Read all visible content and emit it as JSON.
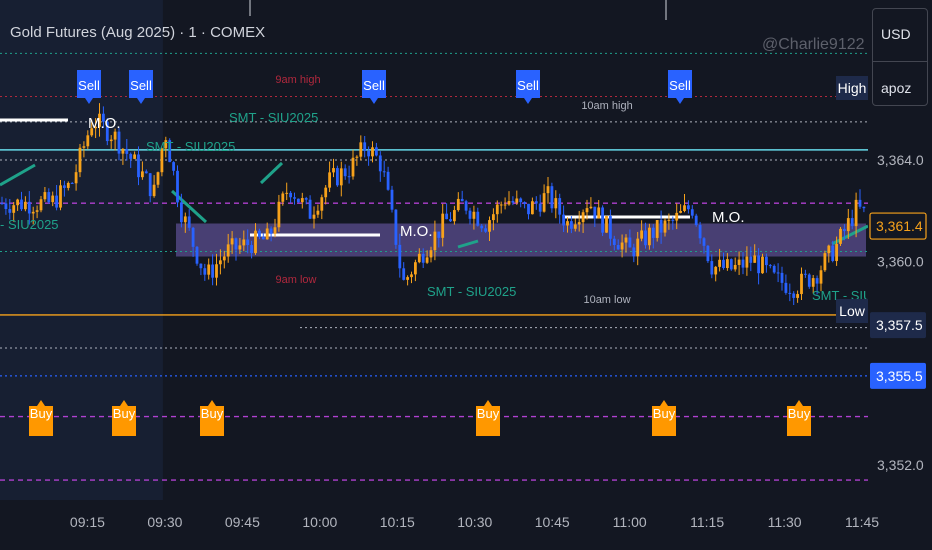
{
  "header": {
    "title": "Gold Futures (Aug 2025) · 1 · COMEX",
    "watermark": "@Charlie9122",
    "currency": "USD",
    "unit": "apoz"
  },
  "colors": {
    "background": "#131722",
    "session_shade": "#1b2640",
    "candle_up": "#f7a21b",
    "candle_down": "#2962ff",
    "sell_label": "#2962ff",
    "buy_label": "#ff9800",
    "axis_text": "#b2b5be",
    "purple_dashed": "#b040d0",
    "cyan_line": "#66d9e8",
    "dotted_white": "#aeb2bd",
    "smt_line": "#1fa28a",
    "mo_line": "#ffffff",
    "orange_line": "#f7a21b",
    "blue_dotted": "#2962ff",
    "red_dotted": "#b0283d",
    "band_fill": "#5b4e8f",
    "green_dotted": "#1f9e8a"
  },
  "chart_data": {
    "type": "candlestick",
    "symbol": "Gold Futures (Aug 2025)",
    "interval": "1",
    "exchange": "COMEX",
    "x_tick_labels": [
      "09:15",
      "09:30",
      "09:45",
      "10:00",
      "10:15",
      "10:30",
      "10:45",
      "11:00",
      "11:15",
      "11:30",
      "11:45"
    ],
    "y_tick_labels": [
      "3,364.0",
      "3,360.0",
      "3,352.0"
    ],
    "y_range": [
      3350.6,
      3368.9
    ],
    "time_range": [
      "09:08",
      "11:50"
    ],
    "price_badges": [
      {
        "label": "3,361.4",
        "value": 3361.4,
        "style": "last-price"
      },
      {
        "label": "3,357.5",
        "value": 3357.5,
        "style": "dark"
      },
      {
        "label": "3,355.5",
        "value": 3355.5,
        "style": "blue"
      }
    ],
    "levels": [
      {
        "name": "9am high",
        "value": 3366.4,
        "style": "red-dotted"
      },
      {
        "name": "10am high",
        "value": 3364.9,
        "style": "white-dotted"
      },
      {
        "name": "9am low",
        "value": 3358.2,
        "style": "red-dotted"
      },
      {
        "name": "10am low",
        "value": 3357.7,
        "style": "white-dotted"
      },
      {
        "name": "High",
        "value": 3366.5
      },
      {
        "name": "Low",
        "value": 3357.5
      },
      {
        "name": "M.O.",
        "value": 3360.9
      },
      {
        "name": "M.O.",
        "value": 3361.5
      },
      {
        "name": "M.O.",
        "value": 3365.2
      }
    ],
    "smt_labels": [
      "SMT - SIU2025",
      "SMT - SIU2025",
      "- SIU2025",
      "SMT - SIU2025",
      "SMT - SIU"
    ],
    "signals": {
      "sell_times": [
        "09:23",
        "09:31",
        "10:12",
        "10:43",
        "11:14"
      ],
      "buy_times": [
        "09:11",
        "09:27",
        "09:41",
        "10:36",
        "11:10",
        "11:37"
      ]
    },
    "series": [
      {
        "time": "09:08",
        "close": 3362.3
      },
      {
        "time": "09:12",
        "close": 3363.1
      },
      {
        "time": "09:16",
        "close": 3365.6
      },
      {
        "time": "09:20",
        "close": 3365.0
      },
      {
        "time": "09:24",
        "close": 3363.9
      },
      {
        "time": "09:28",
        "close": 3362.7
      },
      {
        "time": "09:30",
        "close": 3365.2
      },
      {
        "time": "09:33",
        "close": 3362.1
      },
      {
        "time": "09:36",
        "close": 3360.4
      },
      {
        "time": "09:38",
        "close": 3359.4
      },
      {
        "time": "09:42",
        "close": 3360.4
      },
      {
        "time": "09:46",
        "close": 3360.7
      },
      {
        "time": "09:50",
        "close": 3360.9
      },
      {
        "time": "09:54",
        "close": 3363.0
      },
      {
        "time": "09:58",
        "close": 3361.9
      },
      {
        "time": "10:02",
        "close": 3363.2
      },
      {
        "time": "10:06",
        "close": 3363.7
      },
      {
        "time": "10:09",
        "close": 3364.6
      },
      {
        "time": "10:12",
        "close": 3363.8
      },
      {
        "time": "10:15",
        "close": 3360.6
      },
      {
        "time": "10:16",
        "close": 3359.1
      },
      {
        "time": "10:20",
        "close": 3360.4
      },
      {
        "time": "10:24",
        "close": 3361.5
      },
      {
        "time": "10:28",
        "close": 3362.3
      },
      {
        "time": "10:32",
        "close": 3361.5
      },
      {
        "time": "10:36",
        "close": 3362.5
      },
      {
        "time": "10:40",
        "close": 3362.0
      },
      {
        "time": "10:44",
        "close": 3362.6
      },
      {
        "time": "10:48",
        "close": 3361.5
      },
      {
        "time": "10:52",
        "close": 3362.4
      },
      {
        "time": "10:56",
        "close": 3361.2
      },
      {
        "time": "11:00",
        "close": 3360.4
      },
      {
        "time": "11:04",
        "close": 3361.1
      },
      {
        "time": "11:08",
        "close": 3361.5
      },
      {
        "time": "11:12",
        "close": 3362.2
      },
      {
        "time": "11:16",
        "close": 3359.8
      },
      {
        "time": "11:20",
        "close": 3359.7
      },
      {
        "time": "11:24",
        "close": 3360.1
      },
      {
        "time": "11:28",
        "close": 3359.3
      },
      {
        "time": "11:32",
        "close": 3359.0
      },
      {
        "time": "11:36",
        "close": 3359.5
      },
      {
        "time": "11:40",
        "close": 3360.6
      },
      {
        "time": "11:44",
        "close": 3362.1
      },
      {
        "time": "11:47",
        "close": 3361.6
      },
      {
        "time": "11:50",
        "close": 3361.4
      }
    ]
  }
}
